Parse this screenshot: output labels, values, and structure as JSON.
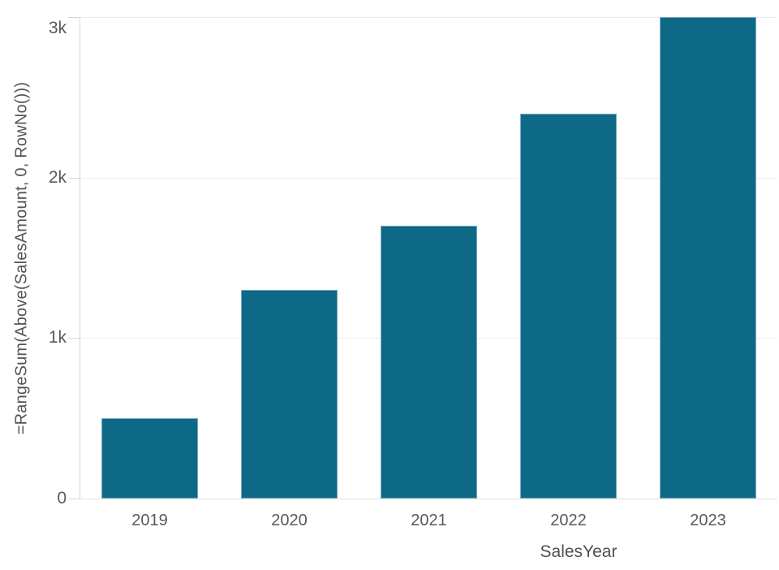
{
  "chart_data": {
    "type": "bar",
    "title": "",
    "xlabel": "SalesYear",
    "ylabel": "=RangeSum(Above(SalesAmount, 0, RowNo()))",
    "categories": [
      "2019",
      "2020",
      "2021",
      "2022",
      "2023"
    ],
    "values": [
      500,
      1300,
      1700,
      2400,
      3000
    ],
    "ylim": [
      0,
      3000
    ],
    "y_ticks": [
      {
        "value": 0,
        "label": "0"
      },
      {
        "value": 1000,
        "label": "1k"
      },
      {
        "value": 2000,
        "label": "2k"
      },
      {
        "value": 3000,
        "label": "3k"
      }
    ],
    "grid": "horizontal",
    "legend": "none",
    "bar_color": "#0d6986",
    "axis_color": "#d6d6d6",
    "grid_color": "#ededed",
    "text_color": "#595959"
  }
}
